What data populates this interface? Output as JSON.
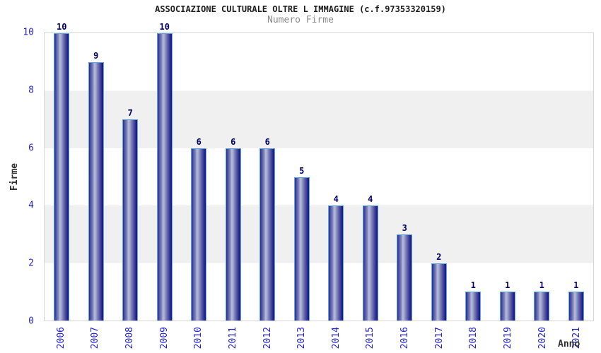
{
  "header": {
    "title": "ASSOCIAZIONE CULTURALE OLTRE L IMMAGINE (c.f.97353320159)",
    "subtitle": "Numero Firme"
  },
  "chart_data": {
    "type": "bar",
    "title": "ASSOCIAZIONE CULTURALE OLTRE L IMMAGINE (c.f.97353320159)",
    "subtitle": "Numero Firme",
    "categories": [
      "2006",
      "2007",
      "2008",
      "2009",
      "2010",
      "2011",
      "2012",
      "2013",
      "2014",
      "2015",
      "2016",
      "2017",
      "2018",
      "2019",
      "2020",
      "2021"
    ],
    "values": [
      10,
      9,
      7,
      10,
      6,
      6,
      6,
      5,
      4,
      4,
      3,
      2,
      1,
      1,
      1,
      1
    ],
    "xlabel": "Anno",
    "ylabel": "Firme",
    "ylim": [
      0,
      10
    ],
    "yticks": [
      0,
      2,
      4,
      6,
      8,
      10
    ],
    "grid": "alternating horizontal bands",
    "legend": false,
    "bar_value_labels": true
  },
  "colors": {
    "bar_edge_dark": "#15157d",
    "bar_highlight": "#b7bcd8",
    "bar_outline": "#5ea9dd",
    "value_label": "#000066",
    "axis_tick_text": "#2424cc",
    "title_text": "#1c1c1c",
    "subtitle_text": "#8a8a8a",
    "axis_title_text": "#2e2e2e",
    "band_gray": "#f0f0f0",
    "plot_border": "#d6d6d6",
    "background": "#ffffff"
  }
}
